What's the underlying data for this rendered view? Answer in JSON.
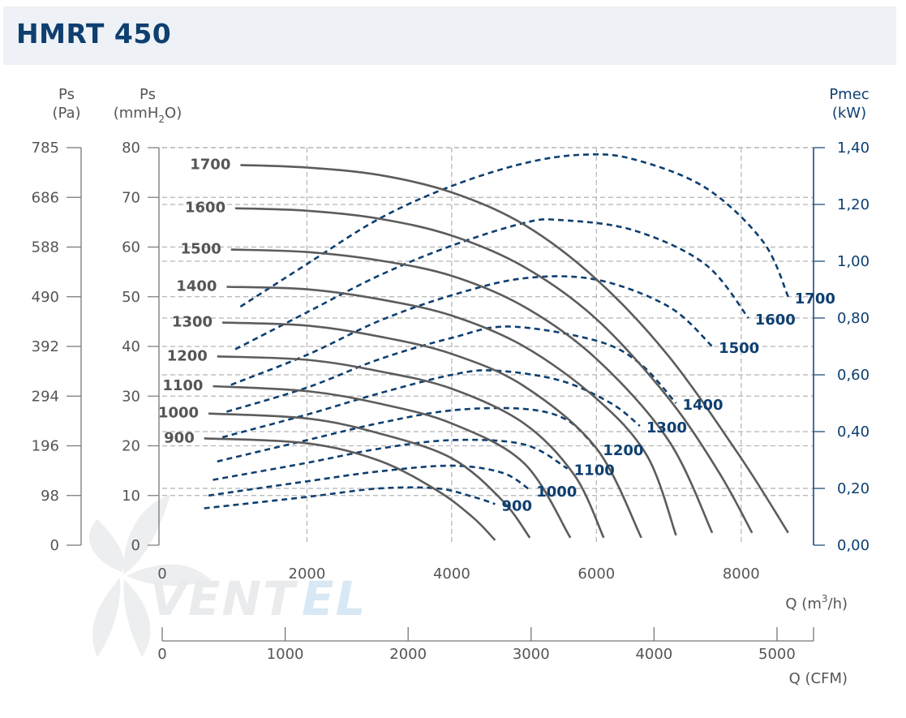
{
  "header": {
    "title": "HMRT 450"
  },
  "chart_data": {
    "type": "line",
    "title": "HMRT 450",
    "axes": {
      "y_left_pa": {
        "label_top": "Ps",
        "label_unit": "(Pa)",
        "ticks": [
          "785",
          "686",
          "588",
          "490",
          "392",
          "294",
          "196",
          "98",
          "0"
        ]
      },
      "y_left_mmh2o": {
        "label_top": "Ps",
        "label_unit_pre": "(mmH",
        "label_unit_sub": "2",
        "label_unit_post": "O)",
        "range": [
          0,
          80
        ],
        "ticks": [
          "80",
          "70",
          "60",
          "50",
          "40",
          "30",
          "20",
          "10",
          "0"
        ]
      },
      "y_right_kw": {
        "label_top": "Pmec",
        "label_unit": "(kW)",
        "range": [
          0,
          1.4
        ],
        "ticks": [
          "1,40",
          "1,20",
          "1,00",
          "0,80",
          "0,60",
          "0,40",
          "0,20",
          "0,00"
        ]
      },
      "x_m3h": {
        "label_pre": "Q (m",
        "label_sup": "3",
        "label_post": "/h)",
        "range": [
          0,
          9000
        ],
        "ticks": [
          "0",
          "2000",
          "4000",
          "6000",
          "8000"
        ]
      },
      "x_cfm": {
        "label": "Q (CFM)",
        "ticks": [
          "0",
          "1000",
          "2000",
          "3000",
          "4000",
          "5000"
        ]
      }
    },
    "grid": true,
    "pressure_series": [
      {
        "name": "1700",
        "points": [
          [
            1080,
            76.5
          ],
          [
            2000,
            76
          ],
          [
            3000,
            74.5
          ],
          [
            4000,
            71
          ],
          [
            5000,
            64.5
          ],
          [
            6000,
            53.5
          ],
          [
            7000,
            38
          ],
          [
            8000,
            17.5
          ],
          [
            8650,
            2.5
          ]
        ]
      },
      {
        "name": "1600",
        "points": [
          [
            1010,
            67.8
          ],
          [
            2000,
            67.3
          ],
          [
            3000,
            65.7
          ],
          [
            4000,
            62.3
          ],
          [
            5000,
            56
          ],
          [
            6000,
            45.5
          ],
          [
            7000,
            29.5
          ],
          [
            7700,
            14.5
          ],
          [
            8150,
            2.5
          ]
        ]
      },
      {
        "name": "1500",
        "points": [
          [
            950,
            59.5
          ],
          [
            2000,
            59
          ],
          [
            3000,
            57.3
          ],
          [
            4000,
            54.2
          ],
          [
            5000,
            48
          ],
          [
            6000,
            37.5
          ],
          [
            7000,
            21
          ],
          [
            7600,
            2.5
          ]
        ]
      },
      {
        "name": "1400",
        "points": [
          [
            890,
            52
          ],
          [
            2000,
            51.5
          ],
          [
            3000,
            49.5
          ],
          [
            4000,
            46.2
          ],
          [
            5000,
            40
          ],
          [
            6000,
            29.5
          ],
          [
            6700,
            18
          ],
          [
            7100,
            2
          ]
        ]
      },
      {
        "name": "1300",
        "points": [
          [
            830,
            44.8
          ],
          [
            2000,
            44.2
          ],
          [
            3000,
            42
          ],
          [
            4000,
            38.5
          ],
          [
            5000,
            32
          ],
          [
            6000,
            19.5
          ],
          [
            6620,
            1.5
          ]
        ]
      },
      {
        "name": "1200",
        "points": [
          [
            760,
            38
          ],
          [
            2000,
            37.3
          ],
          [
            3000,
            35
          ],
          [
            4000,
            31.5
          ],
          [
            5000,
            24.5
          ],
          [
            5700,
            14
          ],
          [
            6100,
            1.5
          ]
        ]
      },
      {
        "name": "1100",
        "points": [
          [
            700,
            32
          ],
          [
            2000,
            31
          ],
          [
            3000,
            28.5
          ],
          [
            4000,
            24.5
          ],
          [
            5000,
            16.5
          ],
          [
            5640,
            1.5
          ]
        ]
      },
      {
        "name": "1000",
        "points": [
          [
            640,
            26.5
          ],
          [
            2000,
            25.5
          ],
          [
            3000,
            22.5
          ],
          [
            4000,
            17.5
          ],
          [
            4700,
            9
          ],
          [
            5080,
            1.5
          ]
        ]
      },
      {
        "name": "900",
        "points": [
          [
            580,
            21.5
          ],
          [
            2000,
            20.5
          ],
          [
            3000,
            17
          ],
          [
            3800,
            11
          ],
          [
            4300,
            5.5
          ],
          [
            4600,
            1
          ]
        ]
      }
    ],
    "power_series": [
      {
        "name": "1700",
        "points": [
          [
            1080,
            0.84
          ],
          [
            2000,
            0.99
          ],
          [
            3000,
            1.15
          ],
          [
            4000,
            1.265
          ],
          [
            5000,
            1.345
          ],
          [
            5800,
            1.375
          ],
          [
            6500,
            1.36
          ],
          [
            7500,
            1.26
          ],
          [
            8300,
            1.07
          ],
          [
            8650,
            0.875
          ]
        ]
      },
      {
        "name": "1600",
        "points": [
          [
            1010,
            0.69
          ],
          [
            2000,
            0.82
          ],
          [
            3000,
            0.95
          ],
          [
            4000,
            1.055
          ],
          [
            5000,
            1.135
          ],
          [
            5500,
            1.145
          ],
          [
            6500,
            1.11
          ],
          [
            7500,
            0.99
          ],
          [
            8100,
            0.8
          ]
        ]
      },
      {
        "name": "1500",
        "points": [
          [
            950,
            0.565
          ],
          [
            2000,
            0.67
          ],
          [
            3000,
            0.79
          ],
          [
            4000,
            0.88
          ],
          [
            5000,
            0.94
          ],
          [
            6000,
            0.935
          ],
          [
            7000,
            0.84
          ],
          [
            7600,
            0.7
          ]
        ]
      },
      {
        "name": "1400",
        "points": [
          [
            890,
            0.47
          ],
          [
            2000,
            0.555
          ],
          [
            3000,
            0.655
          ],
          [
            4000,
            0.73
          ],
          [
            4800,
            0.77
          ],
          [
            6000,
            0.72
          ],
          [
            6600,
            0.64
          ],
          [
            7100,
            0.5
          ]
        ]
      },
      {
        "name": "1300",
        "points": [
          [
            830,
            0.38
          ],
          [
            2000,
            0.46
          ],
          [
            3000,
            0.535
          ],
          [
            4000,
            0.6
          ],
          [
            4600,
            0.615
          ],
          [
            5500,
            0.58
          ],
          [
            6200,
            0.5
          ],
          [
            6600,
            0.42
          ]
        ]
      },
      {
        "name": "1200",
        "points": [
          [
            760,
            0.295
          ],
          [
            2000,
            0.37
          ],
          [
            3000,
            0.43
          ],
          [
            4000,
            0.475
          ],
          [
            5000,
            0.48
          ],
          [
            5600,
            0.44
          ],
          [
            6000,
            0.34
          ]
        ]
      },
      {
        "name": "1100",
        "points": [
          [
            700,
            0.23
          ],
          [
            2000,
            0.29
          ],
          [
            3000,
            0.34
          ],
          [
            4000,
            0.37
          ],
          [
            5000,
            0.355
          ],
          [
            5600,
            0.27
          ]
        ]
      },
      {
        "name": "1000",
        "points": [
          [
            640,
            0.175
          ],
          [
            2000,
            0.225
          ],
          [
            3000,
            0.26
          ],
          [
            4000,
            0.28
          ],
          [
            4700,
            0.255
          ],
          [
            5080,
            0.195
          ]
        ]
      },
      {
        "name": "900",
        "points": [
          [
            580,
            0.13
          ],
          [
            2000,
            0.17
          ],
          [
            3000,
            0.2
          ],
          [
            3800,
            0.2
          ],
          [
            4300,
            0.17
          ],
          [
            4600,
            0.145
          ]
        ]
      }
    ]
  }
}
